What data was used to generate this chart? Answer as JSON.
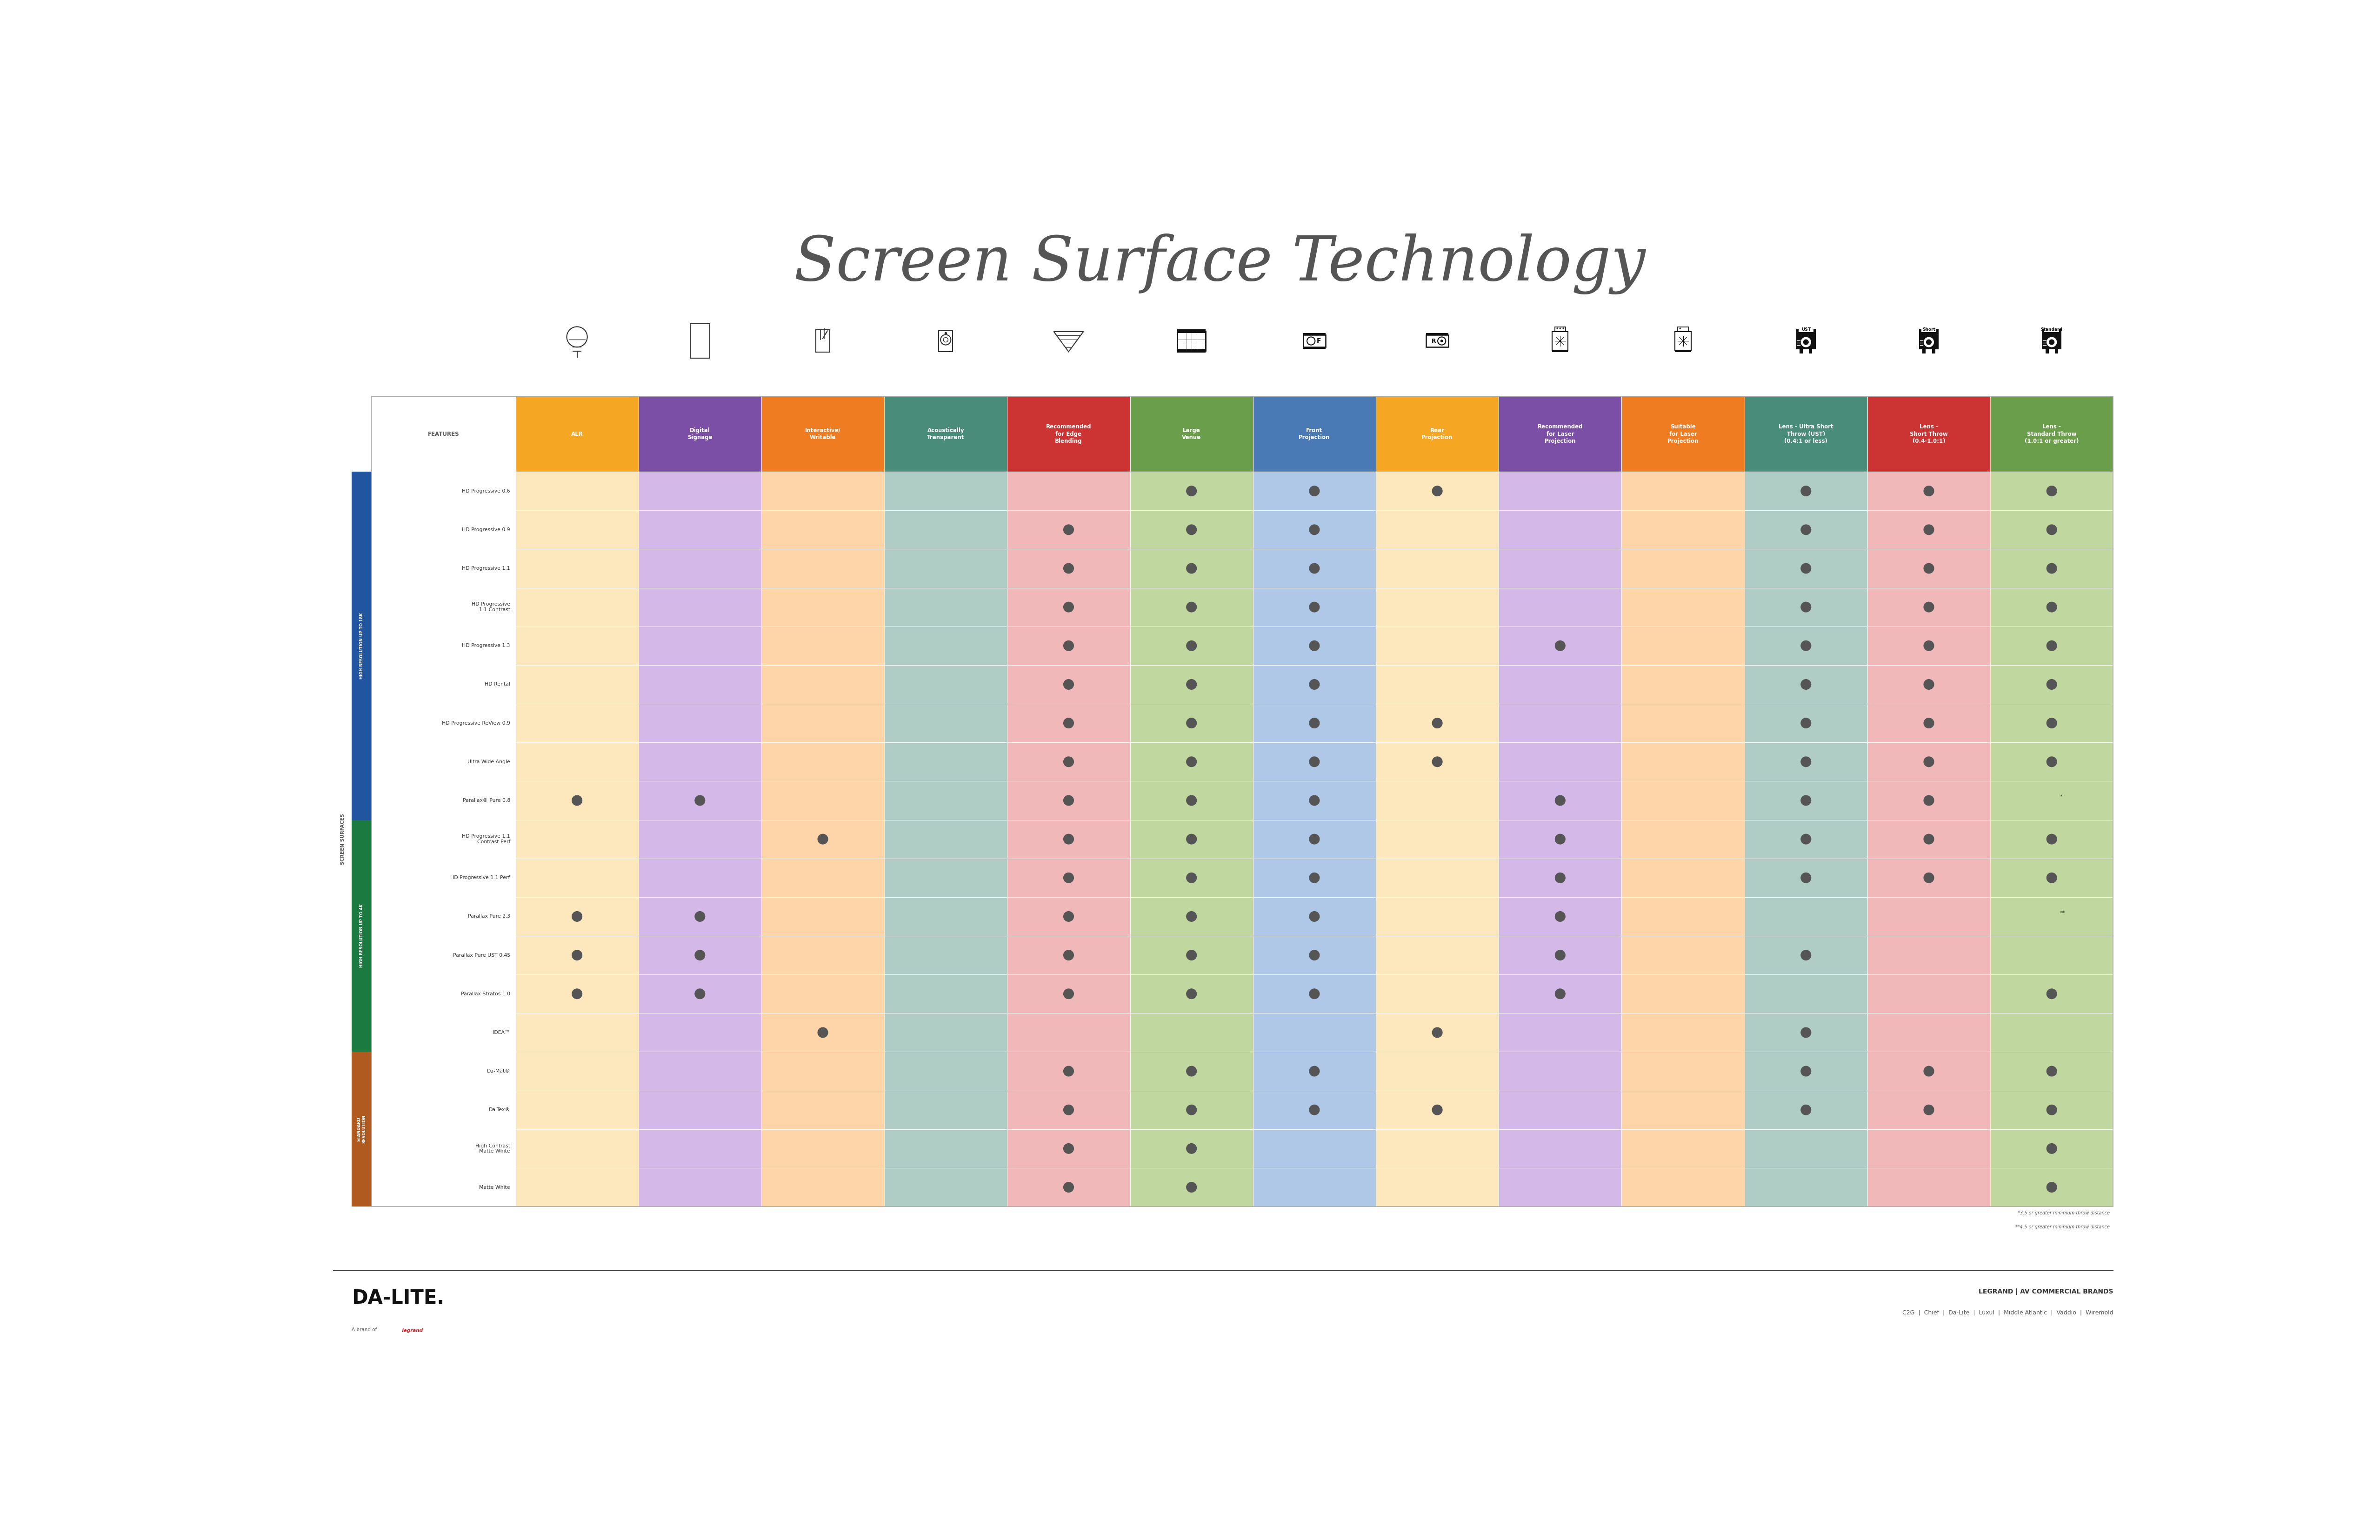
{
  "title": "Screen Surface Technology",
  "title_color": "#555555",
  "bg_color": "#ffffff",
  "columns": [
    {
      "label": "FEATURES",
      "header_color": "#ffffff",
      "text_color": "#555555",
      "cell_color": "#ffffff"
    },
    {
      "label": "ALR",
      "header_color": "#f5a623",
      "text_color": "#ffffff",
      "cell_color": "#fde8be"
    },
    {
      "label": "Digital\nSignage",
      "header_color": "#7b4fa6",
      "text_color": "#ffffff",
      "cell_color": "#d4b8e8"
    },
    {
      "label": "Interactive/\nWritable",
      "header_color": "#f07c22",
      "text_color": "#ffffff",
      "cell_color": "#fdd5a8"
    },
    {
      "label": "Acoustically\nTransparent",
      "header_color": "#4a8c7a",
      "text_color": "#ffffff",
      "cell_color": "#b0cdc5"
    },
    {
      "label": "Recommended\nfor Edge\nBlending",
      "header_color": "#cc3333",
      "text_color": "#ffffff",
      "cell_color": "#f0b8b8"
    },
    {
      "label": "Large\nVenue",
      "header_color": "#6a9e4a",
      "text_color": "#ffffff",
      "cell_color": "#c0d8a0"
    },
    {
      "label": "Front\nProjection",
      "header_color": "#4a7ab5",
      "text_color": "#ffffff",
      "cell_color": "#b0c8e8"
    },
    {
      "label": "Rear\nProjection",
      "header_color": "#f5a623",
      "text_color": "#ffffff",
      "cell_color": "#fde8be"
    },
    {
      "label": "Recommended\nfor Laser\nProjection",
      "header_color": "#7b4fa6",
      "text_color": "#ffffff",
      "cell_color": "#d4b8e8"
    },
    {
      "label": "Suitable\nfor Laser\nProjection",
      "header_color": "#f07c22",
      "text_color": "#ffffff",
      "cell_color": "#fdd5a8"
    },
    {
      "label": "Lens - Ultra Short\nThrow (UST)\n(0.4:1 or less)",
      "header_color": "#4a8c7a",
      "text_color": "#ffffff",
      "cell_color": "#b0cdc5"
    },
    {
      "label": "Lens -\nShort Throw\n(0.4-1.0:1)",
      "header_color": "#cc3333",
      "text_color": "#ffffff",
      "cell_color": "#f0b8b8"
    },
    {
      "label": "Lens -\nStandard Throw\n(1.0:1 or greater)",
      "header_color": "#6a9e4a",
      "text_color": "#ffffff",
      "cell_color": "#c0d8a0"
    }
  ],
  "groups": [
    {
      "label": "HIGH RESOLUTION UP TO 18K",
      "color": "#2255a0",
      "rows": [
        {
          "name": "HD Progressive 0.6",
          "dots": [
            0,
            0,
            0,
            0,
            0,
            1,
            1,
            1,
            0,
            0,
            1,
            1,
            1
          ]
        },
        {
          "name": "HD Progressive 0.9",
          "dots": [
            0,
            0,
            0,
            0,
            1,
            1,
            1,
            0,
            0,
            0,
            1,
            1,
            1
          ]
        },
        {
          "name": "HD Progressive 1.1",
          "dots": [
            0,
            0,
            0,
            0,
            1,
            1,
            1,
            0,
            0,
            0,
            1,
            1,
            1
          ]
        },
        {
          "name": "HD Progressive\n1.1 Contrast",
          "dots": [
            0,
            0,
            0,
            0,
            1,
            1,
            1,
            0,
            0,
            0,
            1,
            1,
            1
          ]
        },
        {
          "name": "HD Progressive 1.3",
          "dots": [
            0,
            0,
            0,
            0,
            1,
            1,
            1,
            0,
            1,
            0,
            1,
            1,
            1
          ]
        },
        {
          "name": "HD Rental",
          "dots": [
            0,
            0,
            0,
            0,
            1,
            1,
            1,
            0,
            0,
            0,
            1,
            1,
            1
          ]
        },
        {
          "name": "HD Progressive ReView 0.9",
          "dots": [
            0,
            0,
            0,
            0,
            1,
            1,
            1,
            1,
            0,
            0,
            1,
            1,
            1
          ]
        },
        {
          "name": "Ultra Wide Angle",
          "dots": [
            0,
            0,
            0,
            0,
            1,
            1,
            1,
            1,
            0,
            0,
            1,
            1,
            1
          ]
        },
        {
          "name": "Parallax® Pure 0.8",
          "dots": [
            1,
            1,
            0,
            0,
            1,
            1,
            1,
            0,
            1,
            0,
            1,
            1,
            0
          ]
        }
      ]
    },
    {
      "label": "HIGH RESOLUTION UP TO 4K",
      "color": "#1a7a40",
      "rows": [
        {
          "name": "HD Progressive 1.1\nContrast Perf",
          "dots": [
            0,
            0,
            1,
            0,
            1,
            1,
            1,
            0,
            1,
            0,
            1,
            1,
            1
          ]
        },
        {
          "name": "HD Progressive 1.1 Perf",
          "dots": [
            0,
            0,
            0,
            0,
            1,
            1,
            1,
            0,
            1,
            0,
            1,
            1,
            1
          ]
        },
        {
          "name": "Parallax Pure 2.3",
          "dots": [
            1,
            1,
            0,
            0,
            1,
            1,
            1,
            0,
            1,
            0,
            0,
            0,
            0
          ]
        },
        {
          "name": "Parallax Pure UST 0.45",
          "dots": [
            1,
            1,
            0,
            0,
            1,
            1,
            1,
            0,
            1,
            0,
            1,
            0,
            0
          ]
        },
        {
          "name": "Parallax Stratos 1.0",
          "dots": [
            1,
            1,
            0,
            0,
            1,
            1,
            1,
            0,
            1,
            0,
            0,
            0,
            1
          ]
        },
        {
          "name": "IDEA™",
          "dots": [
            0,
            0,
            1,
            0,
            0,
            0,
            0,
            1,
            0,
            0,
            1,
            0,
            0
          ]
        }
      ]
    },
    {
      "label": "STANDARD\nRESOLUTION",
      "color": "#b05a20",
      "rows": [
        {
          "name": "Da-Mat®",
          "dots": [
            0,
            0,
            0,
            0,
            1,
            1,
            1,
            0,
            0,
            0,
            1,
            1,
            1
          ]
        },
        {
          "name": "Da-Tex®",
          "dots": [
            0,
            0,
            0,
            0,
            1,
            1,
            1,
            1,
            0,
            0,
            1,
            1,
            1
          ]
        },
        {
          "name": "High Contrast\nMatte White",
          "dots": [
            0,
            0,
            0,
            0,
            1,
            1,
            0,
            0,
            0,
            0,
            0,
            0,
            1
          ]
        },
        {
          "name": "Matte White",
          "dots": [
            0,
            0,
            0,
            0,
            1,
            1,
            0,
            0,
            0,
            0,
            0,
            0,
            1
          ]
        }
      ]
    }
  ],
  "dot_color": "#555555",
  "footnote1": "*3.5 or greater minimum throw distance",
  "footnote2": "**4.5 or greater minimum throw distance",
  "special_dots": {
    "Parallax® Pure 0.8_12": "*",
    "Parallax Pure 2.3_12": "**"
  },
  "dalite_text": "DA-LITE.",
  "dalite_sub": "A brand of",
  "legrand_text": "LEGRAND | AV COMMERCIAL BRANDS",
  "brands_text": "C2G  |  Chief  |  Da-Lite  |  Luxul  |  Middle Atlantic  |  Vaddio  |  Wiremold"
}
